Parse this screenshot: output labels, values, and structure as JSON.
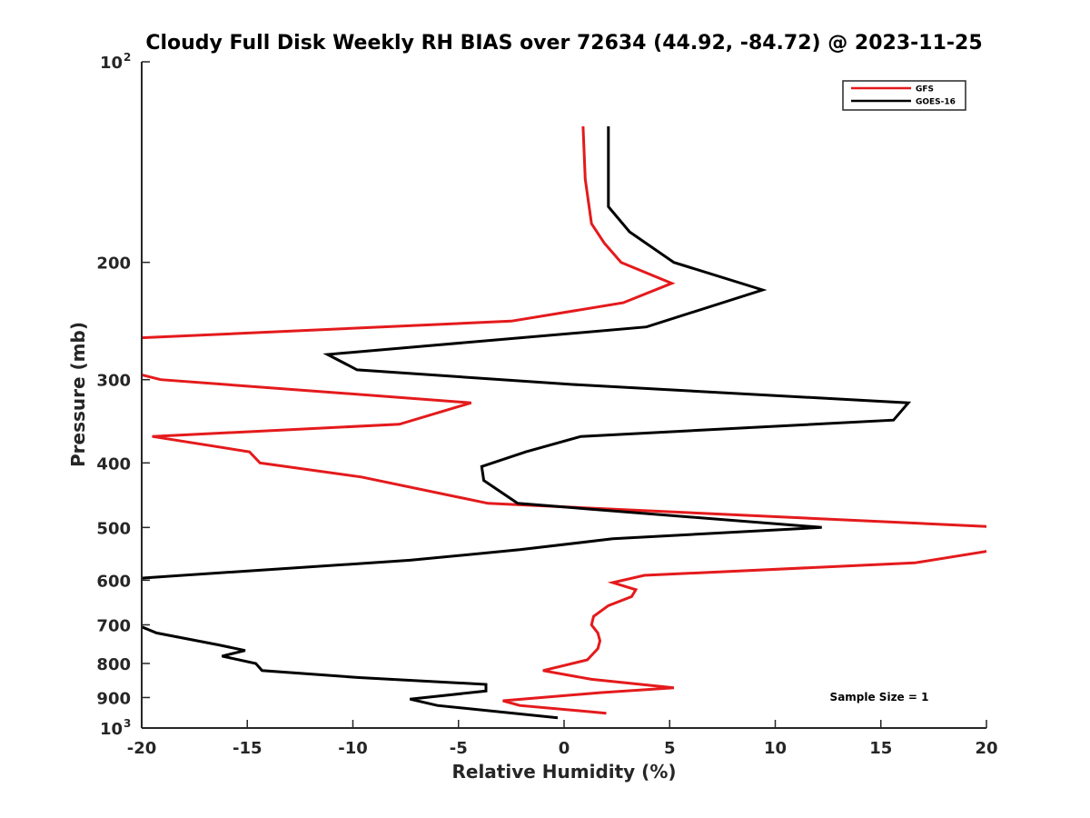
{
  "chart_data": {
    "type": "line",
    "title": "Cloudy Full Disk Weekly RH BIAS over 72634 (44.92, -84.72) @ 2023-11-25",
    "xlabel": "Relative Humidity (%)",
    "ylabel": "Pressure (mb)",
    "xlim": [
      -20,
      20
    ],
    "ylim": [
      100,
      1000
    ],
    "y_scale": "log",
    "y_reversed": true,
    "x_ticks": [
      "-20",
      "-15",
      "-10",
      "-5",
      "0",
      "5",
      "10",
      "15",
      "20"
    ],
    "y_ticks": [
      {
        "value": 100,
        "base": "10",
        "sup": "2"
      },
      {
        "value": 200,
        "label": "200"
      },
      {
        "value": 300,
        "label": "300"
      },
      {
        "value": 400,
        "label": "400"
      },
      {
        "value": 500,
        "label": "500"
      },
      {
        "value": 600,
        "label": "600"
      },
      {
        "value": 700,
        "label": "700"
      },
      {
        "value": 800,
        "label": "800"
      },
      {
        "value": 900,
        "label": "900"
      },
      {
        "value": 1000,
        "base": "10",
        "sup": "3"
      }
    ],
    "legend_position": "top-right",
    "annotation": "Sample Size = 1",
    "series": [
      {
        "name": "GFS",
        "color": "#e41a1c",
        "points": [
          [
            0.9,
            125
          ],
          [
            1.0,
            150
          ],
          [
            1.3,
            175
          ],
          [
            1.9,
            187
          ],
          [
            2.7,
            200
          ],
          [
            5.1,
            215
          ],
          [
            2.8,
            230
          ],
          [
            -2.5,
            245
          ],
          [
            -20.5,
            260
          ],
          [
            -20.0,
            295
          ],
          [
            -19.1,
            300
          ],
          [
            -4.4,
            325
          ],
          [
            -7.8,
            350
          ],
          [
            -19.5,
            365
          ],
          [
            -14.9,
            385
          ],
          [
            -14.4,
            400
          ],
          [
            -9.6,
            420
          ],
          [
            -3.6,
            460
          ],
          [
            21.0,
            500
          ],
          [
            20.5,
            540
          ],
          [
            16.6,
            565
          ],
          [
            3.8,
            590
          ],
          [
            2.3,
            605
          ],
          [
            3.4,
            620
          ],
          [
            3.2,
            635
          ],
          [
            2.1,
            655
          ],
          [
            1.4,
            680
          ],
          [
            1.3,
            700
          ],
          [
            1.6,
            720
          ],
          [
            1.7,
            740
          ],
          [
            1.6,
            760
          ],
          [
            1.1,
            790
          ],
          [
            -1.0,
            820
          ],
          [
            1.3,
            845
          ],
          [
            5.2,
            870
          ],
          [
            1.7,
            885
          ],
          [
            -2.9,
            910
          ],
          [
            -2.1,
            925
          ],
          [
            2.0,
            950
          ]
        ]
      },
      {
        "name": "GOES-16",
        "color": "#000000",
        "points": [
          [
            2.1,
            125
          ],
          [
            2.1,
            150
          ],
          [
            2.1,
            165
          ],
          [
            3.1,
            180
          ],
          [
            5.2,
            200
          ],
          [
            9.4,
            220
          ],
          [
            3.9,
            250
          ],
          [
            -11.2,
            275
          ],
          [
            -9.8,
            290
          ],
          [
            0.4,
            305
          ],
          [
            16.3,
            325
          ],
          [
            15.6,
            345
          ],
          [
            0.8,
            365
          ],
          [
            -1.8,
            385
          ],
          [
            -3.9,
            405
          ],
          [
            -3.8,
            425
          ],
          [
            -2.2,
            460
          ],
          [
            12.2,
            500
          ],
          [
            2.3,
            520
          ],
          [
            -2.1,
            540
          ],
          [
            -7.3,
            560
          ],
          [
            -19.8,
            595
          ],
          [
            -20.5,
            598
          ],
          [
            -20.5,
            698
          ],
          [
            -20.0,
            705
          ],
          [
            -19.3,
            720
          ],
          [
            -16.4,
            750
          ],
          [
            -15.1,
            765
          ],
          [
            -16.2,
            780
          ],
          [
            -14.6,
            800
          ],
          [
            -14.3,
            820
          ],
          [
            -9.7,
            840
          ],
          [
            -3.7,
            860
          ],
          [
            -3.7,
            880
          ],
          [
            -7.3,
            905
          ],
          [
            -6.0,
            925
          ],
          [
            -0.3,
            965
          ]
        ]
      }
    ]
  }
}
